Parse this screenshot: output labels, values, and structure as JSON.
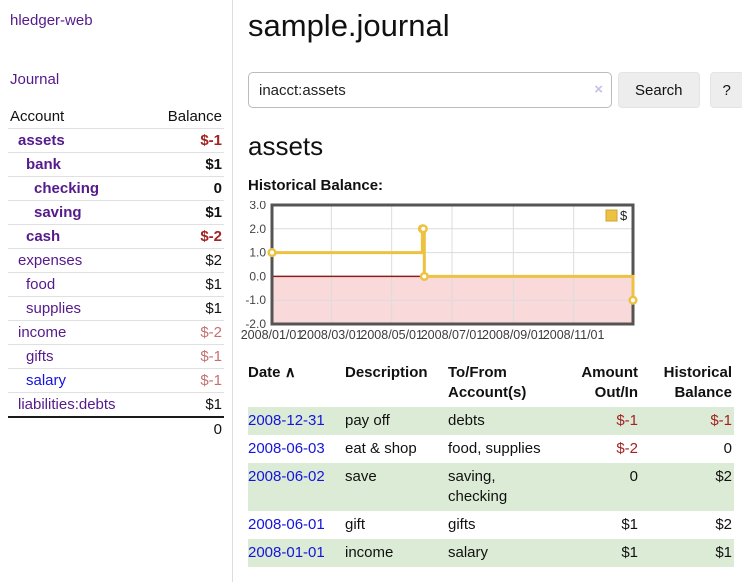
{
  "app": {
    "brand": "hledger-web",
    "nav_journal": "Journal"
  },
  "colors": {
    "purple": "#551a8b",
    "blue": "#1414dd",
    "neg": "#a32222",
    "negmuted": "#c57070",
    "green": "#dcebd6",
    "btnbg": "#ededed",
    "lavender": "#c9c0e2"
  },
  "sidebar": {
    "accounts_header": {
      "account": "Account",
      "balance": "Balance"
    },
    "accounts": [
      {
        "name": "assets",
        "indent": 1,
        "bold": true,
        "balance": "$-1",
        "balance_style": "neg"
      },
      {
        "name": "bank",
        "indent": 2,
        "bold": true,
        "balance": "$1",
        "balance_style": ""
      },
      {
        "name": "checking",
        "indent": 3,
        "bold": true,
        "balance": "0",
        "balance_style": ""
      },
      {
        "name": "saving",
        "indent": 3,
        "bold": true,
        "balance": "$1",
        "balance_style": ""
      },
      {
        "name": "cash",
        "indent": 2,
        "bold": true,
        "balance": "$-2",
        "balance_style": "neg"
      },
      {
        "name": "expenses",
        "indent": 1,
        "bold": false,
        "balance": "$2",
        "balance_style": ""
      },
      {
        "name": "food",
        "indent": 2,
        "bold": false,
        "balance": "$1",
        "balance_style": ""
      },
      {
        "name": "supplies",
        "indent": 2,
        "bold": false,
        "balance": "$1",
        "balance_style": ""
      },
      {
        "name": "income",
        "indent": 1,
        "bold": false,
        "balance": "$-2",
        "balance_style": "negmuted"
      },
      {
        "name": "gifts",
        "indent": 2,
        "bold": false,
        "balance": "$-1",
        "balance_style": "negmuted"
      },
      {
        "name": "salary",
        "indent": 2,
        "bold": false,
        "balance": "$-1",
        "balance_style": "negmuted",
        "link_style": "blue"
      },
      {
        "name": "liabilities:debts",
        "indent": 1,
        "bold": false,
        "balance": "$1",
        "balance_style": ""
      }
    ],
    "total": "0"
  },
  "header": {
    "title": "sample.journal"
  },
  "search": {
    "value": "inacct:assets",
    "clear_icon": "×",
    "search_label": "Search",
    "help_label": "?"
  },
  "account_page": {
    "heading": "assets"
  },
  "chart_data": {
    "type": "line",
    "title": "Historical Balance:",
    "step": true,
    "xlim": [
      "2008-01-01",
      "2008-12-31"
    ],
    "ylim": [
      -2,
      3
    ],
    "x_ticks": [
      "2008/01/01",
      "2008/03/01",
      "2008/05/01",
      "2008/07/01",
      "2008/09/01",
      "2008/11/01"
    ],
    "y_ticks": [
      "3.0",
      "2.0",
      "1.0",
      "0.0",
      "-1.0",
      "-2.0"
    ],
    "grid": true,
    "legend": {
      "label": "$",
      "position": "top-right"
    },
    "series": [
      {
        "name": "$",
        "color": "#edc240",
        "points": [
          [
            "2008-01-01",
            1
          ],
          [
            "2008-06-01",
            2
          ],
          [
            "2008-06-02",
            2
          ],
          [
            "2008-06-03",
            0
          ],
          [
            "2008-12-31",
            -1
          ]
        ]
      }
    ],
    "colors": {
      "negative_fill": "#f9d9d9",
      "zero_line": "#8b1f1f",
      "grid": "#dcdcdc",
      "border": "#545454",
      "legend_border": "#cfa43a",
      "marker_fill": "#ffffff"
    }
  },
  "register": {
    "headers": {
      "date": "Date",
      "description": "Description",
      "tofrom": "To/From Account(s)",
      "amount": "Amount Out/In",
      "balance": "Historical Balance"
    },
    "sort_icon": "∧",
    "rows": [
      {
        "date": "2008-12-31",
        "description": "pay off",
        "accounts": "debts",
        "amount": "$-1",
        "amount_negative": true,
        "balance": "$-1",
        "balance_negative": true
      },
      {
        "date": "2008-06-03",
        "description": "eat & shop",
        "accounts": "food, supplies",
        "amount": "$-2",
        "amount_negative": true,
        "balance": "0",
        "balance_negative": false
      },
      {
        "date": "2008-06-02",
        "description": "save",
        "accounts": "saving, checking",
        "amount": "0",
        "amount_negative": false,
        "balance": "$2",
        "balance_negative": false
      },
      {
        "date": "2008-06-01",
        "description": "gift",
        "accounts": "gifts",
        "amount": "$1",
        "amount_negative": false,
        "balance": "$2",
        "balance_negative": false
      },
      {
        "date": "2008-01-01",
        "description": "income",
        "accounts": "salary",
        "amount": "$1",
        "amount_negative": false,
        "balance": "$1",
        "balance_negative": false
      }
    ]
  }
}
